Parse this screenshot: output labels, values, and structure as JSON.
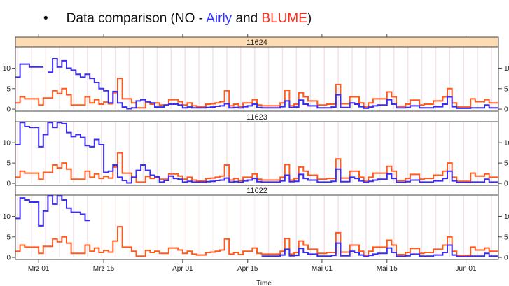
{
  "slide": {
    "bullet": "•",
    "title_prefix": "Data comparison (NO - ",
    "title_airly": "Airly",
    "title_and": " and ",
    "title_blume": "BLUME",
    "title_suffix": ")"
  },
  "colors": {
    "airly": "#3a2cf0",
    "blume": "#ff5a1e",
    "airly_title": "#3333ff",
    "blume_title": "#ff2a1a",
    "strip_active": "#fddcb4"
  },
  "chart_data": {
    "type": "line",
    "step": true,
    "xlabel": "Time",
    "ylabel": "",
    "x_start_day_offset": -5,
    "x_unit": "days relative to Mrz 01",
    "xlim_days": [
      -5,
      99
    ],
    "ylim": [
      -0.5,
      15.2
    ],
    "y_ticks": [
      0,
      5,
      10
    ],
    "x_ticks": [
      {
        "label": "Mrz 01",
        "day": 0
      },
      {
        "label": "Mrz 15",
        "day": 14
      },
      {
        "label": "Apr 01",
        "day": 31
      },
      {
        "label": "Apr 15",
        "day": 45
      },
      {
        "label": "Mai 01",
        "day": 61
      },
      {
        "label": "Mai 15",
        "day": 75
      },
      {
        "label": "Jun 01",
        "day": 92
      }
    ],
    "legend": [
      {
        "name": "Airly"
      },
      {
        "name": "BLUME"
      }
    ],
    "panels": [
      {
        "label": "11624",
        "active": true,
        "series": [
          {
            "name": "Airly",
            "values": [
              7.8,
              11,
              11,
              10.3,
              10.3,
              10.3,
              null,
              9,
              12.3,
              10.3,
              11.8,
              10,
              9.5,
              8.5,
              7.8,
              8.5,
              7.5,
              6.5,
              5,
              4.5,
              1.5,
              4.3,
              1.5,
              0.5,
              0.1,
              0.3,
              2,
              2.3,
              1.8,
              1.5,
              0.5,
              0.5,
              1,
              1.2,
              1.2,
              1,
              0.3,
              0.5,
              0.3,
              0.3,
              0.3,
              0.4,
              0.5,
              0.7,
              0.8,
              1.3,
              0.3,
              0.4,
              0.3,
              0.6,
              0.8,
              1.2,
              0.4,
              0.3,
              0.3,
              0.3,
              0.3,
              0.6,
              2,
              0.4,
              0.5,
              2.2,
              1.2,
              0.8,
              0.8,
              0.3,
              0.3,
              0.3,
              0.5,
              3.5,
              0.4,
              0.4,
              1.5,
              1.2,
              0.6,
              0.2,
              0.5,
              0.8,
              1,
              1,
              2.3,
              1.2,
              0.3,
              0.3,
              0.4,
              0.8,
              0.8,
              0.3,
              0.3,
              0.3,
              0.6,
              0.6,
              1.2,
              3,
              0.6,
              0.2,
              0.2,
              0.2,
              0.3,
              0.3,
              0.3,
              1,
              0.3,
              0.3
            ]
          },
          {
            "name": "BLUME",
            "values": [
              1.5,
              3,
              2.5,
              2.5,
              2.5,
              1,
              2.7,
              2.7,
              4.5,
              3.8,
              5,
              3.5,
              1,
              1,
              1,
              3,
              1.5,
              2.3,
              1.2,
              1.7,
              1.3,
              4,
              7.5,
              2.5,
              2.5,
              1.5,
              0.3,
              0.3,
              1.7,
              1.2,
              1.5,
              1,
              1,
              2.3,
              2.3,
              1.8,
              1,
              1.5,
              0.8,
              0.6,
              0.6,
              1.2,
              1.3,
              1.5,
              1.8,
              4.5,
              0.8,
              1.2,
              0.7,
              1.5,
              1.5,
              2.3,
              1,
              0.8,
              0.8,
              0.8,
              0.8,
              1.5,
              4.6,
              0.8,
              1.2,
              4,
              3,
              2,
              2,
              1,
              1,
              1.2,
              1.2,
              6,
              1.3,
              1.3,
              3,
              3,
              1.5,
              0.5,
              1.5,
              2.5,
              2.5,
              2.5,
              4.2,
              3,
              0.7,
              0.7,
              1.2,
              2.2,
              2.2,
              1,
              1.2,
              1.2,
              2,
              2,
              3,
              5,
              1.5,
              0.5,
              0.5,
              0.5,
              2.5,
              1.8,
              1.8,
              2.3,
              1.5,
              1.5
            ]
          }
        ]
      },
      {
        "label": "11623",
        "active": false,
        "series": [
          {
            "name": "Airly",
            "values": [
              9.5,
              15,
              14,
              13.8,
              13.8,
              9,
              12,
              15,
              13.8,
              15,
              14.7,
              12.5,
              11.5,
              12,
              11.3,
              9.3,
              9,
              10.8,
              9.5,
              2.7,
              3,
              4.5,
              1.5,
              0.7,
              0.1,
              1.5,
              3.2,
              4.5,
              3.2,
              2,
              1.6,
              0.3,
              0.7,
              1.8,
              1.2,
              1,
              0.3,
              0.5,
              0.3,
              0.3,
              0.3,
              0.4,
              0.5,
              0.7,
              0.8,
              1.3,
              0.3,
              0.4,
              0.3,
              0.6,
              0.8,
              1.2,
              0.4,
              0.3,
              0.3,
              0.3,
              0.3,
              0.6,
              2,
              0.4,
              0.5,
              2.2,
              1.2,
              0.8,
              0.8,
              0.3,
              0.3,
              0.3,
              0.5,
              3.5,
              0.4,
              0.4,
              1.5,
              1.2,
              0.6,
              0.2,
              0.5,
              0.8,
              1,
              1,
              2.3,
              1.2,
              0.3,
              0.3,
              0.4,
              0.8,
              0.8,
              0.3,
              0.3,
              0.3,
              0.6,
              0.6,
              1.2,
              3,
              0.6,
              0.2,
              0.2,
              0.2,
              0.3,
              0.3,
              0.3,
              1,
              0.3,
              0.3
            ]
          },
          {
            "name": "BLUME",
            "values": [
              1.5,
              3,
              2.5,
              2.5,
              2.5,
              1,
              2.7,
              2.7,
              4.5,
              3.8,
              5,
              3.5,
              1,
              1,
              1,
              3,
              1.5,
              2.3,
              1.2,
              1.7,
              1.3,
              4,
              7.5,
              2.5,
              2.5,
              1.5,
              0.3,
              0.3,
              1.7,
              1.2,
              1.5,
              1,
              1,
              2.3,
              2.3,
              1.8,
              1,
              1.5,
              0.8,
              0.6,
              0.6,
              1.2,
              1.3,
              1.5,
              1.8,
              4.5,
              0.8,
              1.2,
              0.7,
              1.5,
              1.5,
              2.3,
              1,
              0.8,
              0.8,
              0.8,
              0.8,
              1.5,
              4.6,
              0.8,
              1.2,
              4,
              3,
              2,
              2,
              1,
              1,
              1.2,
              1.2,
              6,
              1.3,
              1.3,
              3,
              3,
              1.5,
              0.5,
              1.5,
              2.5,
              2.5,
              2.5,
              4.2,
              3,
              0.7,
              0.7,
              1.2,
              2.2,
              2.2,
              1,
              1.2,
              1.2,
              2,
              2,
              3,
              5,
              1.5,
              0.5,
              0.5,
              0.5,
              2.5,
              1.8,
              1.8,
              2.3,
              1.5,
              1.5
            ]
          }
        ]
      },
      {
        "label": "11622",
        "active": false,
        "series": [
          {
            "name": "Airly",
            "values": [
              9.5,
              14.5,
              14,
              13.5,
              13.5,
              7.7,
              11.3,
              15,
              13,
              15,
              14,
              12,
              11,
              11,
              10.5,
              9,
              null,
              null,
              null,
              null,
              null,
              null,
              null,
              null,
              null,
              null,
              null,
              null,
              null,
              null,
              null,
              null,
              null,
              null,
              null,
              null,
              null,
              null,
              null,
              null,
              null,
              null,
              null,
              null,
              null,
              null,
              null,
              null,
              null,
              null,
              null,
              null,
              null,
              0.3,
              0.3,
              0.3,
              0.3,
              0.6,
              2,
              0.4,
              0.5,
              2.2,
              1.2,
              0.8,
              0.8,
              0.3,
              0.3,
              0.3,
              0.5,
              3.5,
              0.4,
              0.4,
              1.5,
              1.2,
              0.6,
              0.2,
              0.5,
              0.8,
              1,
              1,
              2.3,
              1.2,
              0.3,
              0.3,
              0.4,
              0.8,
              0.8,
              0.3,
              0.3,
              0.3,
              0.6,
              0.6,
              1.2,
              3,
              0.6,
              0.2,
              0.2,
              0.2,
              0.3,
              0.3,
              0.3,
              1,
              0.3,
              0.3
            ]
          },
          {
            "name": "BLUME",
            "values": [
              1.5,
              3,
              2.5,
              2.5,
              2.5,
              1,
              2.7,
              2.7,
              4.5,
              3.8,
              5,
              3.5,
              1,
              1,
              1,
              3,
              1.5,
              2.3,
              1.2,
              1.7,
              1.3,
              4,
              7.5,
              2.5,
              2.5,
              1.5,
              0.3,
              0.3,
              1.7,
              1.2,
              1.5,
              1,
              1,
              2.3,
              2.3,
              1.8,
              1,
              1.5,
              0.8,
              0.6,
              0.6,
              1.2,
              1.3,
              1.5,
              1.8,
              4.5,
              0.8,
              1.2,
              0.7,
              1.5,
              1.5,
              2.3,
              1,
              0.8,
              0.8,
              0.8,
              0.8,
              1.5,
              4.6,
              0.8,
              1.2,
              4,
              3,
              2,
              2,
              1,
              1,
              1.2,
              1.2,
              6,
              1.3,
              1.3,
              3,
              3,
              1.5,
              0.5,
              1.5,
              2.5,
              2.5,
              2.5,
              4.2,
              3,
              0.7,
              0.7,
              1.2,
              2.2,
              2.2,
              1,
              1.2,
              1.2,
              2,
              2,
              3,
              5,
              1.5,
              0.5,
              0.5,
              0.5,
              2.5,
              1.8,
              1.8,
              2.3,
              1.5,
              1.5
            ]
          }
        ]
      }
    ]
  }
}
